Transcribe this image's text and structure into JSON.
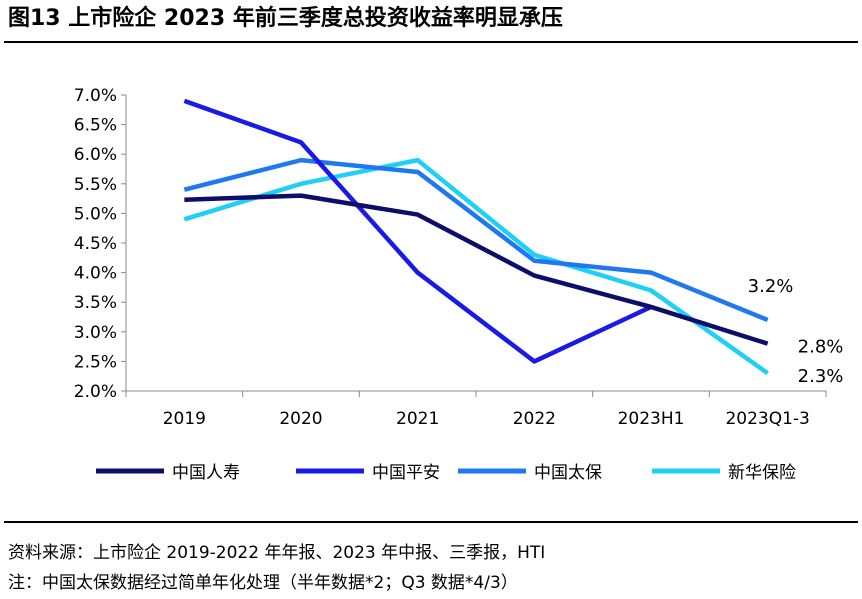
{
  "header": {
    "title": "图13 上市险企 2023 年前三季度总投资收益率明显承压"
  },
  "footer": {
    "source": "资料来源：上市险企 2019-2022 年年报、2023 年中报、三季报，HTI",
    "note": "注：中国太保数据经过简单年化处理（半年数据*2；Q3 数据*4/3）"
  },
  "chart_data": {
    "type": "line",
    "title": "上市险企 2023 年前三季度总投资收益率明显承压",
    "xlabel": "",
    "ylabel": "",
    "categories": [
      "2019",
      "2020",
      "2021",
      "2022",
      "2023H1",
      "2023Q1-3"
    ],
    "ylim": [
      2.0,
      7.0
    ],
    "ytick_step": 0.5,
    "ytick_labels": [
      "2.0%",
      "2.5%",
      "3.0%",
      "3.5%",
      "4.0%",
      "4.5%",
      "5.0%",
      "5.5%",
      "6.0%",
      "6.5%",
      "7.0%"
    ],
    "legend_position": "bottom",
    "series": [
      {
        "name": "中国人寿",
        "color": "#0d0d6b",
        "values": [
          5.23,
          5.3,
          4.98,
          3.95,
          3.42,
          2.8
        ]
      },
      {
        "name": "中国平安",
        "color": "#1a1ae6",
        "values": [
          6.9,
          6.2,
          4.0,
          2.5,
          3.42,
          null
        ]
      },
      {
        "name": "中国太保",
        "color": "#1f78f0",
        "values": [
          5.4,
          5.9,
          5.7,
          4.2,
          4.0,
          3.2
        ]
      },
      {
        "name": "新华保险",
        "color": "#1ed0f5",
        "values": [
          4.9,
          5.5,
          5.9,
          4.3,
          3.7,
          2.3
        ]
      }
    ],
    "annotations": [
      {
        "series": "中国太保",
        "category": "2023Q1-3",
        "text": "3.2%"
      },
      {
        "series": "中国人寿",
        "category": "2023Q1-3",
        "text": "2.8%"
      },
      {
        "series": "新华保险",
        "category": "2023Q1-3",
        "text": "2.3%"
      }
    ]
  }
}
